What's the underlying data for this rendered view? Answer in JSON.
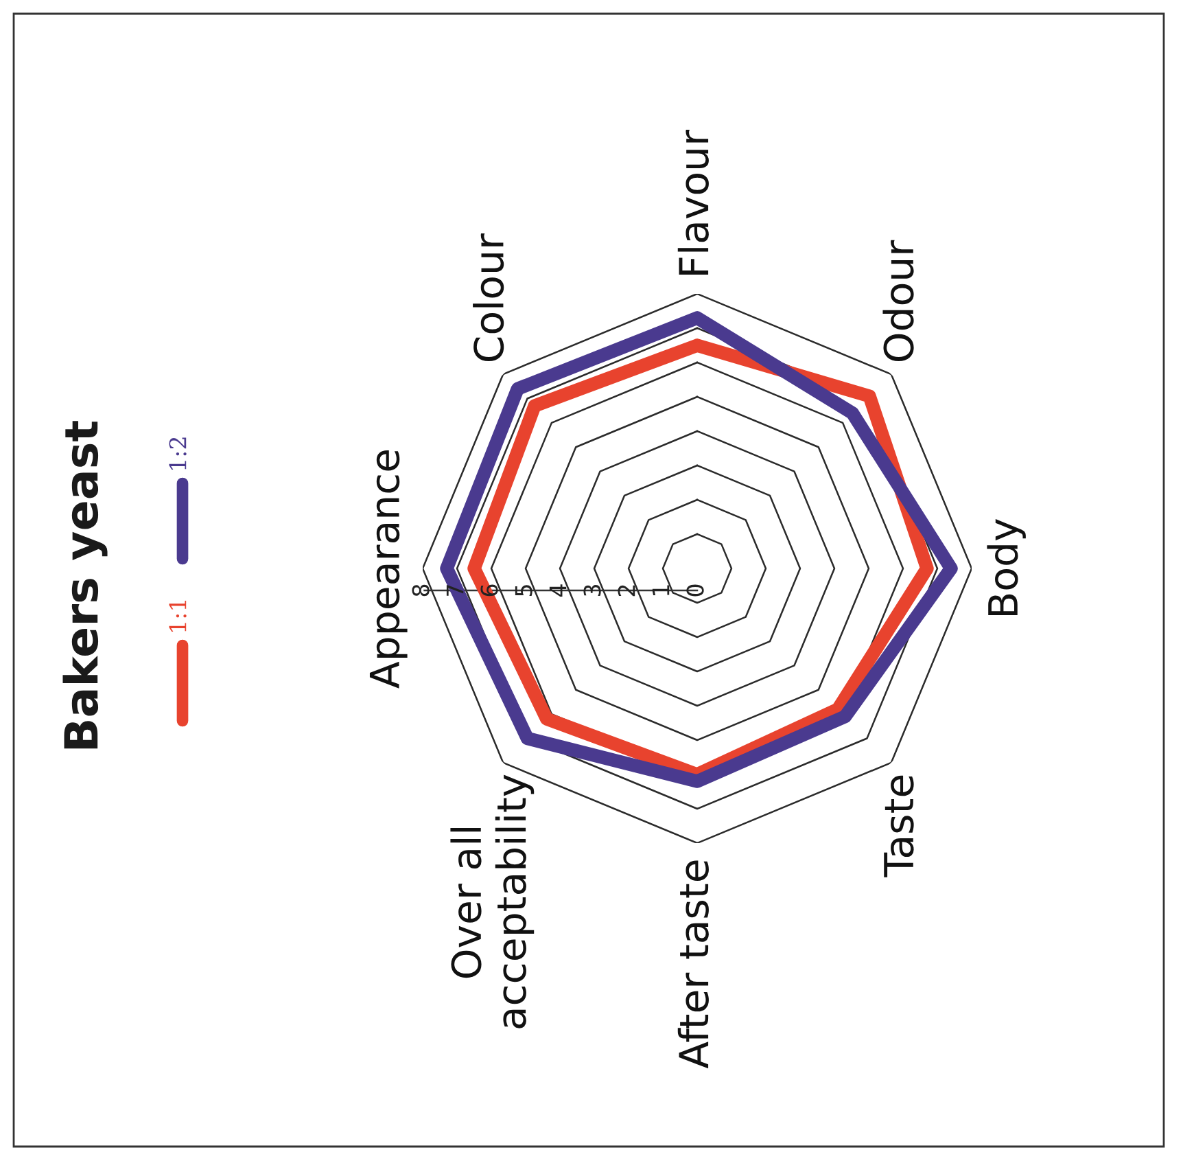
{
  "chart_data": {
    "type": "radar",
    "title": "Bakers yeast",
    "categories": [
      "Flavour",
      "Odour",
      "Body",
      "Taste",
      "After taste",
      "Over all\nacceptability",
      "Appearance",
      "Colour"
    ],
    "series": [
      {
        "name": "1:1",
        "color": "#e8432e",
        "values": [
          6.5,
          7.1,
          6.7,
          5.8,
          6.0,
          6.2,
          6.5,
          6.7
        ]
      },
      {
        "name": "1:2",
        "color": "#4a3a8f",
        "values": [
          7.3,
          6.4,
          7.4,
          6.1,
          6.2,
          7.0,
          7.3,
          7.4
        ]
      }
    ],
    "ylim": [
      0,
      8
    ],
    "yticks": [
      0,
      1,
      2,
      3,
      4,
      5,
      6,
      7,
      8
    ],
    "grid": true,
    "legend": "left"
  }
}
